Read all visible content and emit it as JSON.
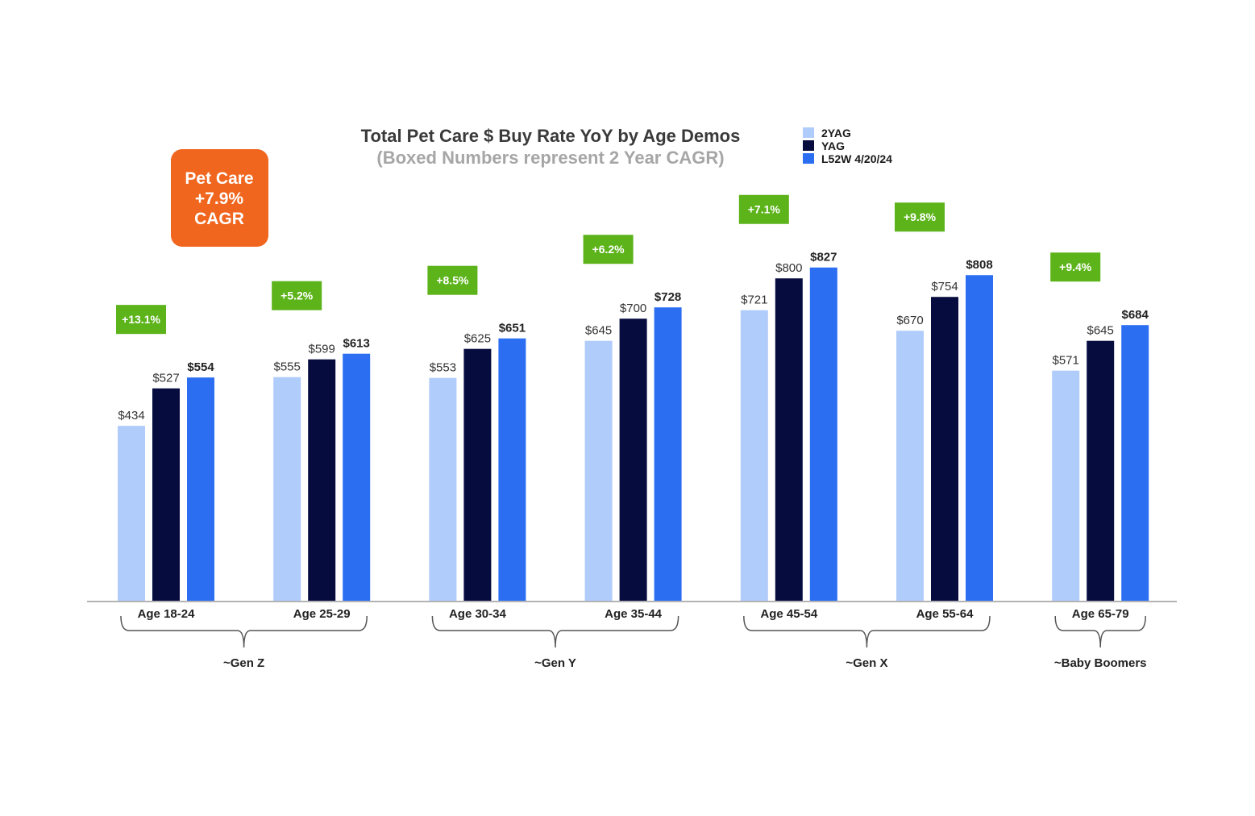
{
  "chart_data": {
    "type": "bar",
    "title": "Total Pet Care $ Buy Rate YoY by Age Demos",
    "subtitle": "(Boxed Numbers represent 2 Year CAGR)",
    "categories": [
      "Age 18-24",
      "Age 25-29",
      "Age 30-34",
      "Age 35-44",
      "Age 45-54",
      "Age 55-64",
      "Age 65-79"
    ],
    "series": [
      {
        "name": "2YAG",
        "color": "#b0ccfb",
        "values": [
          434,
          555,
          553,
          645,
          721,
          670,
          571
        ],
        "labels": [
          "$434",
          "$555",
          "$553",
          "$645",
          "$721",
          "$670",
          "$571"
        ]
      },
      {
        "name": "YAG",
        "color": "#070c3f",
        "values": [
          527,
          599,
          625,
          700,
          800,
          754,
          645
        ],
        "labels": [
          "$527",
          "$599",
          "$625",
          "$700",
          "$800",
          "$754",
          "$645"
        ]
      },
      {
        "name": "L52W 4/20/24",
        "color": "#2b6ef2",
        "values": [
          554,
          613,
          651,
          728,
          827,
          808,
          684
        ],
        "labels": [
          "$554",
          "$613",
          "$651",
          "$728",
          "$827",
          "$808",
          "$684"
        ]
      }
    ],
    "cagr": [
      "+13.1%",
      "+5.2%",
      "+8.5%",
      "+6.2%",
      "+7.1%",
      "+9.8%",
      "+9.4%"
    ],
    "cagr_color": "#5cb31a",
    "groups": [
      {
        "name": "~Gen Z",
        "first": 0,
        "last": 1
      },
      {
        "name": "~Gen Y",
        "first": 2,
        "last": 3
      },
      {
        "name": "~Gen X",
        "first": 4,
        "last": 5
      },
      {
        "name": "~Baby Boomers",
        "first": 6,
        "last": 6
      }
    ],
    "ylim": [
      0,
      900
    ],
    "grid": false,
    "legend_position": "top-right"
  },
  "badge": {
    "lines": [
      "Pet Care",
      "+7.9%",
      "CAGR"
    ],
    "color": "#f0661e"
  }
}
